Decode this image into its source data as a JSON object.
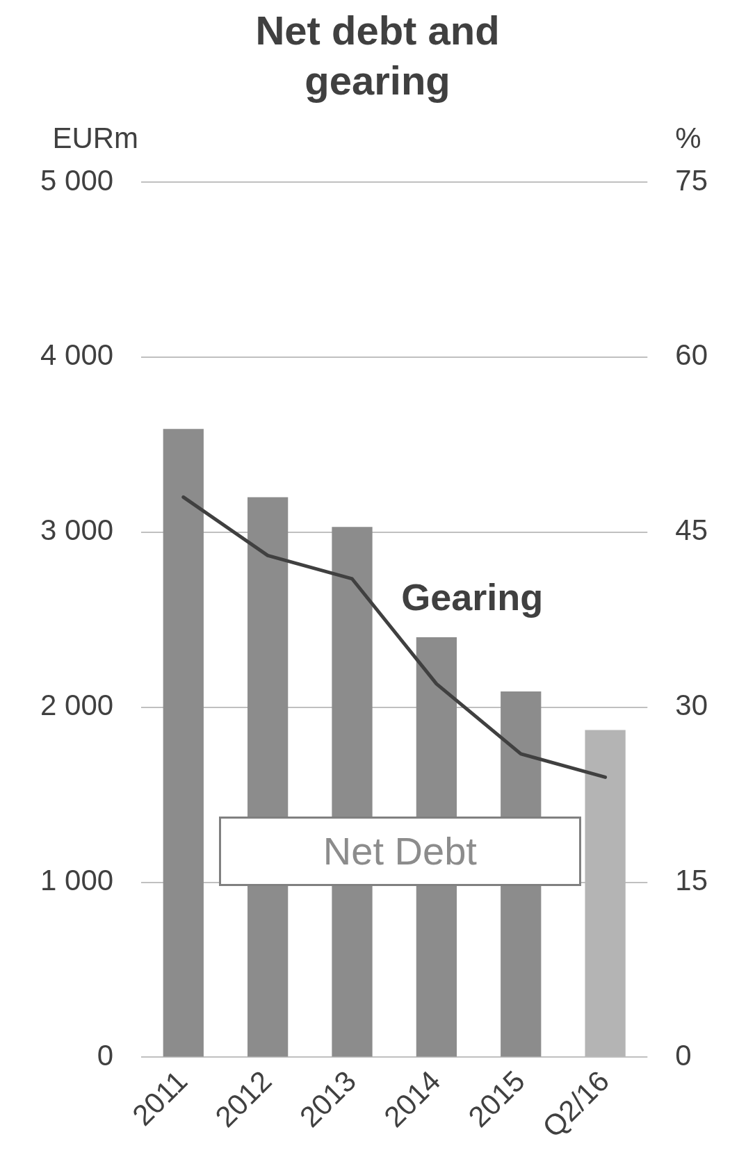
{
  "chart_data": {
    "type": "bar",
    "title": "Net debt and gearing",
    "ylabel": "EURm",
    "y2label": "%",
    "categories": [
      "2011",
      "2012",
      "2013",
      "2014",
      "2015",
      "Q2/16"
    ],
    "series": [
      {
        "name": "Net Debt",
        "colors": [
          "#8c8c8c",
          "#8c8c8c",
          "#8c8c8c",
          "#8c8c8c",
          "#8c8c8c",
          "#b4b4b4"
        ],
        "values": [
          3590,
          3200,
          3030,
          2400,
          2090,
          1870
        ]
      },
      {
        "name": "Gearing",
        "type": "line",
        "axis": "y2",
        "color": "#404040",
        "values": [
          48,
          43,
          41,
          32,
          26,
          24
        ]
      }
    ],
    "ylim": [
      0,
      5000
    ],
    "yticks": [
      0,
      {
        "value": 1000,
        "label": "1 000"
      },
      {
        "value": 2000,
        "label": "2 000"
      },
      {
        "value": 3000,
        "label": "3 000"
      },
      {
        "value": 4000,
        "label": "4 000"
      },
      {
        "value": 5000,
        "label": "5 000"
      }
    ],
    "y2lim": [
      0,
      75
    ],
    "y2ticks": [
      0,
      15,
      30,
      45,
      60,
      75
    ],
    "grid": "y",
    "marker": "none",
    "line_style": "solid",
    "legend": false
  }
}
